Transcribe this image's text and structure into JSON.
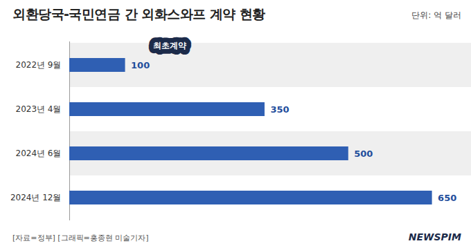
{
  "chart_data": {
    "type": "bar",
    "orientation": "horizontal",
    "title": "외환당국-국민연금 간 외화스와프 계약 현황",
    "subtitle": "단위: 억 달러",
    "categories": [
      "2022년 9월",
      "2023년 4월",
      "2024년 6월",
      "2024년 12월"
    ],
    "values": [
      100,
      350,
      500,
      650
    ],
    "color": "#2f5fb3",
    "xlim": [
      0,
      720
    ],
    "data_labels": true,
    "tick_labels": "y",
    "grid": false,
    "annotation": {
      "category": "2022년 9월",
      "text": "최초계약"
    },
    "source": "[자료=정부] [그래픽=홍종현 미술기자]",
    "credit": "NEWSPIM"
  }
}
